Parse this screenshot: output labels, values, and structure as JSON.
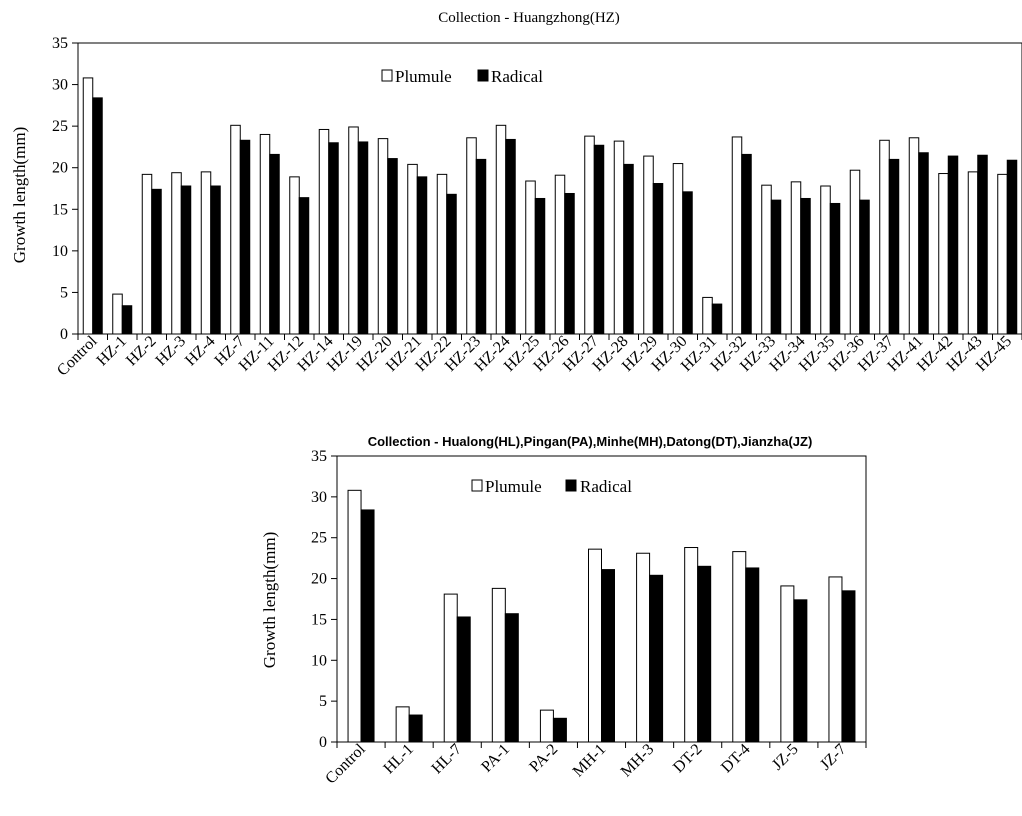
{
  "chart_data": [
    {
      "type": "bar",
      "title": "Collection - Huangzhong(HZ)",
      "xlabel": "",
      "ylabel": "Growth length(mm)",
      "ylim": [
        0,
        35
      ],
      "yticks": [
        0,
        5,
        10,
        15,
        20,
        25,
        30,
        35
      ],
      "grid": false,
      "legend_position": "top-center",
      "categories": [
        "Control",
        "HZ-1",
        "HZ-2",
        "HZ-3",
        "HZ-4",
        "HZ-7",
        "HZ-11",
        "HZ-12",
        "HZ-14",
        "HZ-19",
        "HZ-20",
        "HZ-21",
        "HZ-22",
        "HZ-23",
        "HZ-24",
        "HZ-25",
        "HZ-26",
        "HZ-27",
        "HZ-28",
        "HZ-29",
        "HZ-30",
        "HZ-31",
        "HZ-32",
        "HZ-33",
        "HZ-34",
        "HZ-35",
        "HZ-36",
        "HZ-37",
        "HZ-41",
        "HZ-42",
        "HZ-43",
        "HZ-45"
      ],
      "series": [
        {
          "name": "Plumule",
          "color": "#ffffff",
          "values": [
            30.8,
            4.8,
            19.2,
            19.4,
            19.5,
            25.1,
            24.0,
            18.9,
            24.6,
            24.9,
            23.5,
            20.4,
            19.2,
            23.6,
            25.1,
            18.4,
            19.1,
            23.8,
            23.2,
            21.4,
            20.5,
            4.4,
            23.7,
            17.9,
            18.3,
            17.8,
            19.7,
            23.3,
            23.6,
            19.3,
            19.5,
            19.2
          ]
        },
        {
          "name": "Radical",
          "color": "#000000",
          "values": [
            28.4,
            3.4,
            17.4,
            17.8,
            17.8,
            23.3,
            21.6,
            16.4,
            23.0,
            23.1,
            21.1,
            18.9,
            16.8,
            21.0,
            23.4,
            16.3,
            16.9,
            22.7,
            20.4,
            18.1,
            17.1,
            3.6,
            21.6,
            16.1,
            16.3,
            15.7,
            16.1,
            21.0,
            21.8,
            21.4,
            21.5,
            20.9
          ]
        }
      ]
    },
    {
      "type": "bar",
      "title": "Collection - Hualong(HL),Pingan(PA),Minhe(MH),Datong(DT),Jianzha(JZ)",
      "xlabel": "",
      "ylabel": "Growth length(mm)",
      "ylim": [
        0,
        35
      ],
      "yticks": [
        0,
        5,
        10,
        15,
        20,
        25,
        30,
        35
      ],
      "grid": false,
      "legend_position": "top-center",
      "categories": [
        "Control",
        "HL-1",
        "HL-7",
        "PA-1",
        "PA-2",
        "MH-1",
        "MH-3",
        "DT-2",
        "DT-4",
        "JZ-5",
        "JZ-7"
      ],
      "series": [
        {
          "name": "Plumule",
          "color": "#ffffff",
          "values": [
            30.8,
            4.3,
            18.1,
            18.8,
            3.9,
            23.6,
            23.1,
            23.8,
            23.3,
            19.1,
            20.2
          ]
        },
        {
          "name": "Radical",
          "color": "#000000",
          "values": [
            28.4,
            3.3,
            15.3,
            15.7,
            2.9,
            21.1,
            20.4,
            21.5,
            21.3,
            17.4,
            18.5
          ]
        }
      ]
    }
  ]
}
